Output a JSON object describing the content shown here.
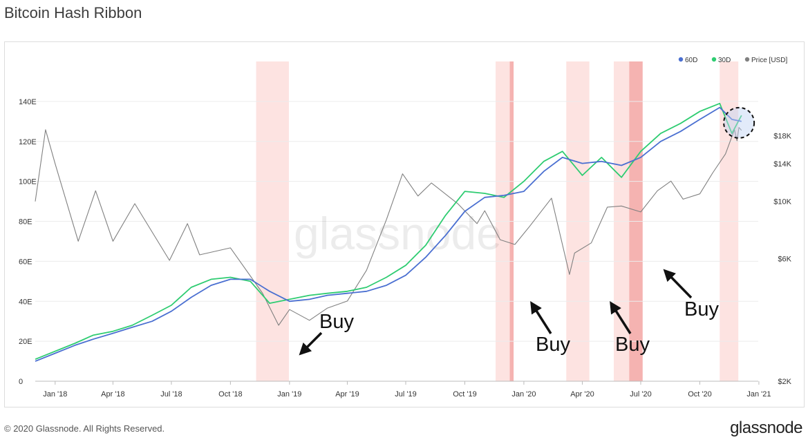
{
  "page": {
    "title": "Bitcoin Hash Ribbon",
    "copyright": "© 2020 Glassnode. All Rights Reserved.",
    "brand": "glassnode",
    "watermark": "glassnode"
  },
  "chart_data": {
    "type": "line",
    "title": "Bitcoin Hash Ribbon",
    "x_range": [
      "2017-12-01",
      "2020-12-31"
    ],
    "x_ticks": [
      {
        "date": "2018-01-01",
        "label": "Jan '18"
      },
      {
        "date": "2018-04-01",
        "label": "Apr '18"
      },
      {
        "date": "2018-07-01",
        "label": "Jul '18"
      },
      {
        "date": "2018-10-01",
        "label": "Oct '18"
      },
      {
        "date": "2019-01-01",
        "label": "Jan '19"
      },
      {
        "date": "2019-04-01",
        "label": "Apr '19"
      },
      {
        "date": "2019-07-01",
        "label": "Jul '19"
      },
      {
        "date": "2019-10-01",
        "label": "Oct '19"
      },
      {
        "date": "2020-01-01",
        "label": "Jan '20"
      },
      {
        "date": "2020-04-01",
        "label": "Apr '20"
      },
      {
        "date": "2020-07-01",
        "label": "Jul '20"
      },
      {
        "date": "2020-10-01",
        "label": "Oct '20"
      },
      {
        "date": "2021-01-01",
        "label": "Jan '21"
      }
    ],
    "y_left": {
      "ylim": [
        0,
        160
      ],
      "ticks": [
        {
          "value": 0,
          "label": "0"
        },
        {
          "value": 20,
          "label": "20E"
        },
        {
          "value": 40,
          "label": "40E"
        },
        {
          "value": 60,
          "label": "60E"
        },
        {
          "value": 80,
          "label": "80E"
        },
        {
          "value": 100,
          "label": "100E"
        },
        {
          "value": 120,
          "label": "120E"
        },
        {
          "value": 140,
          "label": "140E"
        }
      ]
    },
    "y_right": {
      "scale": "log",
      "ylim": [
        2000,
        35000
      ],
      "ticks": [
        {
          "value": 2000,
          "label": "$2K"
        },
        {
          "value": 6000,
          "label": "$6K"
        },
        {
          "value": 10000,
          "label": "$10K"
        },
        {
          "value": 14000,
          "label": "$14K"
        },
        {
          "value": 18000,
          "label": "$18K"
        }
      ]
    },
    "grid": true,
    "legend_position": "top-right",
    "legend": [
      {
        "name": "60D",
        "color": "#4a6fd1"
      },
      {
        "name": "30D",
        "color": "#2ecc71"
      },
      {
        "name": "Price [USD]",
        "color": "#808080"
      }
    ],
    "series": [
      {
        "name": "60D",
        "color": "#4a6fd1",
        "axis": "left",
        "points": [
          [
            "2017-12-01",
            10
          ],
          [
            "2018-01-01",
            14
          ],
          [
            "2018-02-01",
            18
          ],
          [
            "2018-03-01",
            21
          ],
          [
            "2018-04-01",
            24
          ],
          [
            "2018-05-01",
            27
          ],
          [
            "2018-06-01",
            30
          ],
          [
            "2018-07-01",
            35
          ],
          [
            "2018-08-01",
            42
          ],
          [
            "2018-09-01",
            48
          ],
          [
            "2018-10-01",
            51
          ],
          [
            "2018-11-01",
            51
          ],
          [
            "2018-12-01",
            45
          ],
          [
            "2019-01-01",
            40
          ],
          [
            "2019-02-01",
            41
          ],
          [
            "2019-03-01",
            43
          ],
          [
            "2019-04-01",
            44
          ],
          [
            "2019-05-01",
            45
          ],
          [
            "2019-06-01",
            48
          ],
          [
            "2019-07-01",
            53
          ],
          [
            "2019-08-01",
            62
          ],
          [
            "2019-09-01",
            73
          ],
          [
            "2019-10-01",
            85
          ],
          [
            "2019-11-01",
            92
          ],
          [
            "2019-12-01",
            93
          ],
          [
            "2020-01-01",
            95
          ],
          [
            "2020-02-01",
            105
          ],
          [
            "2020-03-01",
            112
          ],
          [
            "2020-04-01",
            109
          ],
          [
            "2020-05-01",
            110
          ],
          [
            "2020-06-01",
            108
          ],
          [
            "2020-07-01",
            112
          ],
          [
            "2020-08-01",
            120
          ],
          [
            "2020-09-01",
            125
          ],
          [
            "2020-10-01",
            131
          ],
          [
            "2020-11-01",
            137
          ],
          [
            "2020-11-20",
            131
          ],
          [
            "2020-12-05",
            130
          ]
        ]
      },
      {
        "name": "30D",
        "color": "#2ecc71",
        "axis": "left",
        "points": [
          [
            "2017-12-01",
            11
          ],
          [
            "2018-01-01",
            15
          ],
          [
            "2018-02-01",
            19
          ],
          [
            "2018-03-01",
            23
          ],
          [
            "2018-04-01",
            25
          ],
          [
            "2018-05-01",
            28
          ],
          [
            "2018-06-01",
            33
          ],
          [
            "2018-07-01",
            38
          ],
          [
            "2018-08-01",
            47
          ],
          [
            "2018-09-01",
            51
          ],
          [
            "2018-10-01",
            52
          ],
          [
            "2018-11-01",
            50
          ],
          [
            "2018-12-01",
            39
          ],
          [
            "2019-01-01",
            41
          ],
          [
            "2019-02-01",
            43
          ],
          [
            "2019-03-01",
            44
          ],
          [
            "2019-04-01",
            45
          ],
          [
            "2019-05-01",
            47
          ],
          [
            "2019-06-01",
            52
          ],
          [
            "2019-07-01",
            58
          ],
          [
            "2019-08-01",
            68
          ],
          [
            "2019-09-01",
            83
          ],
          [
            "2019-10-01",
            95
          ],
          [
            "2019-11-01",
            94
          ],
          [
            "2019-12-01",
            92
          ],
          [
            "2020-01-01",
            100
          ],
          [
            "2020-02-01",
            110
          ],
          [
            "2020-03-01",
            115
          ],
          [
            "2020-04-01",
            103
          ],
          [
            "2020-05-01",
            112
          ],
          [
            "2020-06-01",
            102
          ],
          [
            "2020-07-01",
            115
          ],
          [
            "2020-08-01",
            124
          ],
          [
            "2020-09-01",
            129
          ],
          [
            "2020-10-01",
            135
          ],
          [
            "2020-11-01",
            139
          ],
          [
            "2020-11-20",
            124
          ],
          [
            "2020-12-05",
            133
          ]
        ]
      },
      {
        "name": "Price [USD]",
        "color": "#808080",
        "axis": "right",
        "points": [
          [
            "2017-12-01",
            10000
          ],
          [
            "2017-12-17",
            19000
          ],
          [
            "2018-01-01",
            14000
          ],
          [
            "2018-02-06",
            7000
          ],
          [
            "2018-03-05",
            11000
          ],
          [
            "2018-04-01",
            7000
          ],
          [
            "2018-05-05",
            9800
          ],
          [
            "2018-06-28",
            5900
          ],
          [
            "2018-07-26",
            8200
          ],
          [
            "2018-08-14",
            6200
          ],
          [
            "2018-10-01",
            6600
          ],
          [
            "2018-11-20",
            4400
          ],
          [
            "2018-12-15",
            3300
          ],
          [
            "2019-01-01",
            3800
          ],
          [
            "2019-02-01",
            3450
          ],
          [
            "2019-03-01",
            3850
          ],
          [
            "2019-04-01",
            4100
          ],
          [
            "2019-05-01",
            5400
          ],
          [
            "2019-06-01",
            8500
          ],
          [
            "2019-06-26",
            12800
          ],
          [
            "2019-07-20",
            10500
          ],
          [
            "2019-08-10",
            11800
          ],
          [
            "2019-09-20",
            9800
          ],
          [
            "2019-10-20",
            8200
          ],
          [
            "2019-11-01",
            9200
          ],
          [
            "2019-11-25",
            7100
          ],
          [
            "2019-12-18",
            6800
          ],
          [
            "2020-01-10",
            8000
          ],
          [
            "2020-02-13",
            10300
          ],
          [
            "2020-03-12",
            5200
          ],
          [
            "2020-03-20",
            6300
          ],
          [
            "2020-04-15",
            6900
          ],
          [
            "2020-05-10",
            9500
          ],
          [
            "2020-06-01",
            9600
          ],
          [
            "2020-07-01",
            9100
          ],
          [
            "2020-07-27",
            11000
          ],
          [
            "2020-08-17",
            12000
          ],
          [
            "2020-09-05",
            10200
          ],
          [
            "2020-10-01",
            10700
          ],
          [
            "2020-10-21",
            12900
          ],
          [
            "2020-11-10",
            15300
          ],
          [
            "2020-11-24",
            19000
          ],
          [
            "2020-11-28",
            17200
          ],
          [
            "2020-12-01",
            19400
          ],
          [
            "2020-12-05",
            18900
          ]
        ]
      }
    ],
    "capitulation_bands": [
      {
        "start": "2018-11-10",
        "end": "2018-12-31",
        "intensity": "light"
      },
      {
        "start": "2019-11-18",
        "end": "2019-12-10",
        "intensity": "light"
      },
      {
        "start": "2019-12-10",
        "end": "2019-12-16",
        "intensity": "dark"
      },
      {
        "start": "2020-03-07",
        "end": "2020-04-12",
        "intensity": "light"
      },
      {
        "start": "2020-05-20",
        "end": "2020-06-13",
        "intensity": "light"
      },
      {
        "start": "2020-06-13",
        "end": "2020-07-04",
        "intensity": "dark"
      },
      {
        "start": "2020-11-01",
        "end": "2020-11-30",
        "intensity": "light"
      }
    ],
    "annotations": [
      {
        "label": "Buy",
        "date": "2018-12-31",
        "price": 3850
      },
      {
        "label": "Buy",
        "date": "2019-12-16",
        "price": 7200
      },
      {
        "label": "Buy",
        "date": "2020-04-12",
        "price": 6900
      },
      {
        "label": "Buy",
        "date": "2020-07-04",
        "price": 9200
      }
    ],
    "highlight": {
      "shape": "dashed-circle",
      "date": "2020-12-01",
      "value": 130
    }
  }
}
